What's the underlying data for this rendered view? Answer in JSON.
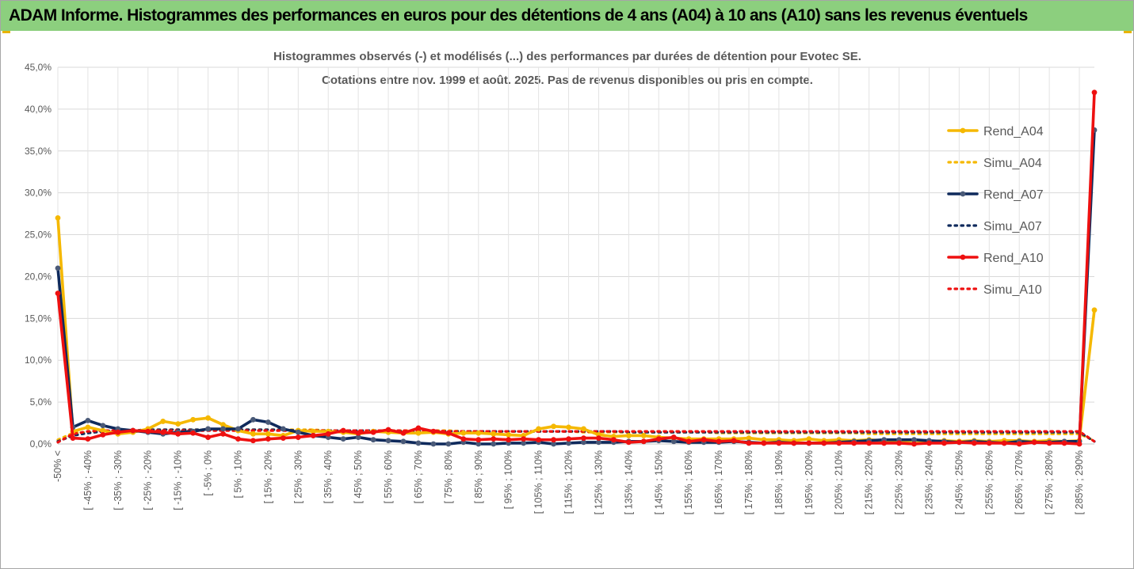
{
  "page": {
    "banner_title": "ADAM Informe. Histogrammes des performances en euros pour des détentions de 4 ans (A04) à 10 ans (A10) sans les revenus éventuels"
  },
  "chart_data": {
    "type": "line",
    "title": "Histogrammes observés (-) et modélisés (...) des performances par durées de détention pour Evotec SE.",
    "subtitle": "Cotations entre nov. 1999 et août. 2025. Pas de revenus disponibles ou pris en compte.",
    "xlabel": "",
    "ylabel": "",
    "ylim": [
      0,
      45
    ],
    "y_unit": "%",
    "yticks": [
      "0,0%",
      "5,0%",
      "10,0%",
      "15,0%",
      "20,0%",
      "25,0%",
      "30,0%",
      "35,0%",
      "40,0%",
      "45,0%"
    ],
    "grid": true,
    "legend_position": "right",
    "x_tick_labels": [
      "-50% <",
      "[ -45% ; -40%",
      "[ -35% ; -30%",
      "[ -25% ; -20%",
      "[ -15% ; -10%",
      "[ -5% ; 0%",
      "[ 5% ; 10%",
      "[ 15% ; 20%",
      "[ 25% ; 30%",
      "[ 35% ; 40%",
      "[ 45% ; 50%",
      "[ 55% ; 60%",
      "[ 65% ; 70%",
      "[ 75% ; 80%",
      "[ 85% ; 90%",
      "[ 95% ; 100%",
      "[ 105% ; 110%",
      "[ 115% ; 120%",
      "[ 125% ; 130%",
      "[ 135% ; 140%",
      "[ 145% ; 150%",
      "[ 155% ; 160%",
      "[ 165% ; 170%",
      "[ 175% ; 180%",
      "[ 185% ; 190%",
      "[ 195% ; 200%",
      "[ 205% ; 210%",
      "[ 215% ; 220%",
      "[ 225% ; 230%",
      "[ 235% ; 240%",
      "[ 245% ; 250%",
      "[ 255% ; 260%",
      "[ 265% ; 270%",
      "[ 275% ; 280%",
      "[ 285% ; 290%"
    ],
    "num_categories": 70,
    "series": [
      {
        "name": "Rend_A04",
        "color": "#f5b800",
        "style": "solid",
        "markers": true,
        "values": [
          27.0,
          1.5,
          2.0,
          1.6,
          1.2,
          1.4,
          1.8,
          2.7,
          2.4,
          2.9,
          3.1,
          2.3,
          1.6,
          1.2,
          1.2,
          1.0,
          1.6,
          1.5,
          1.5,
          1.4,
          1.2,
          1.5,
          1.4,
          1.3,
          1.3,
          1.4,
          1.2,
          1.3,
          1.3,
          1.2,
          1.1,
          1.0,
          1.8,
          2.1,
          2.0,
          1.8,
          1.1,
          0.9,
          1.0,
          1.0,
          0.8,
          0.7,
          0.6,
          0.6,
          0.6,
          0.6,
          0.7,
          0.5,
          0.5,
          0.4,
          0.6,
          0.4,
          0.5,
          0.4,
          0.5,
          0.4,
          0.3,
          0.4,
          0.3,
          0.4,
          0.3,
          0.4,
          0.3,
          0.4,
          0.4,
          0.3,
          0.4,
          0.3,
          0.4,
          16.0
        ]
      },
      {
        "name": "Simu_A04",
        "color": "#f5b800",
        "style": "dotted",
        "markers": false,
        "values": [
          0.5,
          1.3,
          1.4,
          1.5,
          1.6,
          1.6,
          1.7,
          1.7,
          1.7,
          1.7,
          1.7,
          1.7,
          1.7,
          1.7,
          1.7,
          1.7,
          1.7,
          1.7,
          1.6,
          1.6,
          1.6,
          1.6,
          1.6,
          1.6,
          1.6,
          1.6,
          1.6,
          1.5,
          1.5,
          1.5,
          1.5,
          1.5,
          1.5,
          1.5,
          1.5,
          1.4,
          1.4,
          1.4,
          1.4,
          1.4,
          1.4,
          1.4,
          1.4,
          1.4,
          1.3,
          1.3,
          1.3,
          1.3,
          1.3,
          1.3,
          1.3,
          1.3,
          1.3,
          1.3,
          1.2,
          1.2,
          1.2,
          1.2,
          1.2,
          1.2,
          1.2,
          1.2,
          1.2,
          1.2,
          1.2,
          1.2,
          1.2,
          1.2,
          1.2,
          0.4
        ]
      },
      {
        "name": "Rend_A07",
        "color": "#0f2a5c",
        "style": "solid",
        "markers": true,
        "values": [
          21.0,
          2.0,
          2.8,
          2.2,
          1.8,
          1.6,
          1.4,
          1.2,
          1.4,
          1.5,
          1.8,
          1.8,
          1.8,
          2.9,
          2.6,
          1.8,
          1.4,
          1.0,
          0.8,
          0.6,
          0.8,
          0.5,
          0.4,
          0.3,
          0.1,
          0.0,
          0.0,
          0.2,
          0.0,
          0.0,
          0.1,
          0.1,
          0.2,
          0.0,
          0.1,
          0.2,
          0.2,
          0.2,
          0.3,
          0.3,
          0.4,
          0.3,
          0.2,
          0.2,
          0.2,
          0.3,
          0.2,
          0.1,
          0.2,
          0.1,
          0.1,
          0.1,
          0.2,
          0.3,
          0.4,
          0.5,
          0.5,
          0.5,
          0.4,
          0.3,
          0.2,
          0.3,
          0.2,
          0.1,
          0.3,
          0.2,
          0.2,
          0.3,
          0.3,
          37.5
        ]
      },
      {
        "name": "Simu_A07",
        "color": "#0f2a5c",
        "style": "dotted",
        "markers": false,
        "values": [
          0.3,
          1.0,
          1.3,
          1.5,
          1.6,
          1.6,
          1.7,
          1.7,
          1.7,
          1.7,
          1.7,
          1.7,
          1.7,
          1.7,
          1.7,
          1.7,
          1.6,
          1.6,
          1.6,
          1.6,
          1.6,
          1.6,
          1.6,
          1.5,
          1.5,
          1.5,
          1.5,
          1.5,
          1.5,
          1.5,
          1.5,
          1.5,
          1.5,
          1.5,
          1.5,
          1.5,
          1.5,
          1.5,
          1.4,
          1.4,
          1.4,
          1.4,
          1.4,
          1.4,
          1.4,
          1.4,
          1.4,
          1.4,
          1.4,
          1.4,
          1.4,
          1.4,
          1.4,
          1.4,
          1.4,
          1.4,
          1.4,
          1.4,
          1.4,
          1.4,
          1.4,
          1.4,
          1.4,
          1.4,
          1.4,
          1.4,
          1.4,
          1.4,
          1.4,
          0.3
        ]
      },
      {
        "name": "Rend_A10",
        "color": "#ee1010",
        "style": "solid",
        "markers": true,
        "values": [
          18.0,
          0.7,
          0.6,
          1.1,
          1.4,
          1.6,
          1.5,
          1.4,
          1.2,
          1.3,
          0.8,
          1.2,
          0.6,
          0.4,
          0.6,
          0.7,
          0.8,
          1.0,
          1.2,
          1.6,
          1.3,
          1.4,
          1.7,
          1.3,
          1.9,
          1.5,
          1.3,
          0.6,
          0.5,
          0.6,
          0.5,
          0.6,
          0.5,
          0.5,
          0.6,
          0.7,
          0.7,
          0.5,
          0.2,
          0.3,
          0.6,
          0.8,
          0.3,
          0.5,
          0.3,
          0.4,
          0.1,
          0.1,
          0.1,
          0.1,
          0.1,
          0.1,
          0.1,
          0.1,
          0.1,
          0.1,
          0.1,
          0.0,
          0.1,
          0.1,
          0.2,
          0.1,
          0.1,
          0.1,
          0.0,
          0.2,
          0.1,
          0.1,
          0.0,
          42.0
        ]
      },
      {
        "name": "Simu_A10",
        "color": "#ee1010",
        "style": "dotted",
        "markers": false,
        "values": [
          0.2,
          1.2,
          1.5,
          1.6,
          1.6,
          1.6,
          1.6,
          1.6,
          1.6,
          1.6,
          1.6,
          1.6,
          1.6,
          1.6,
          1.6,
          1.6,
          1.6,
          1.6,
          1.6,
          1.6,
          1.6,
          1.6,
          1.6,
          1.6,
          1.6,
          1.6,
          1.5,
          1.5,
          1.5,
          1.5,
          1.5,
          1.5,
          1.5,
          1.5,
          1.5,
          1.5,
          1.5,
          1.5,
          1.5,
          1.5,
          1.5,
          1.5,
          1.5,
          1.5,
          1.5,
          1.5,
          1.5,
          1.5,
          1.5,
          1.5,
          1.5,
          1.5,
          1.5,
          1.5,
          1.5,
          1.5,
          1.5,
          1.5,
          1.5,
          1.5,
          1.5,
          1.5,
          1.5,
          1.5,
          1.5,
          1.5,
          1.5,
          1.5,
          1.5,
          0.3
        ]
      }
    ]
  }
}
